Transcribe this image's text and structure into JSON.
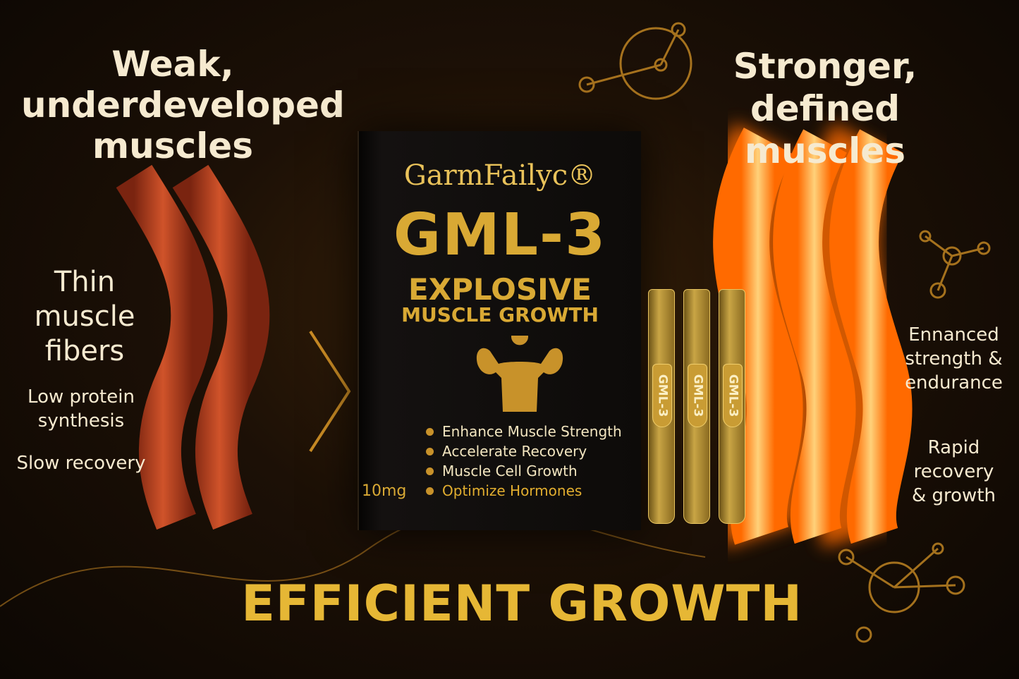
{
  "left": {
    "title": "Weak, underdeveloped muscles",
    "fibers": "Thin muscle fibers",
    "protein": "Low protein synthesis",
    "recovery": "Slow recovery"
  },
  "right": {
    "title": "Stronger, defined muscles",
    "strength": "Ennanced strength & endurance",
    "rapid": "Rapid recovery & growth"
  },
  "box": {
    "brand": "GarmFailyc®",
    "product": "GML-3",
    "headline": "EXPLOSIVE",
    "subheadline": "MUSCLE GROWTH",
    "dose": "10mg",
    "features": [
      "Enhance Muscle Strength",
      "Accelerate Recovery",
      "Muscle Cell Growth",
      "Optimize Hormones"
    ],
    "icon": "flexing-bodybuilder-icon"
  },
  "vials": [
    "GML-3",
    "GML-3",
    "GML-3"
  ],
  "tagline": "EFFICIENT GROWTH",
  "colors": {
    "gold": "#d9a934",
    "weak_muscle": "#c4461c",
    "strong_muscle": "#ff8a1c",
    "background": "#120b05"
  }
}
